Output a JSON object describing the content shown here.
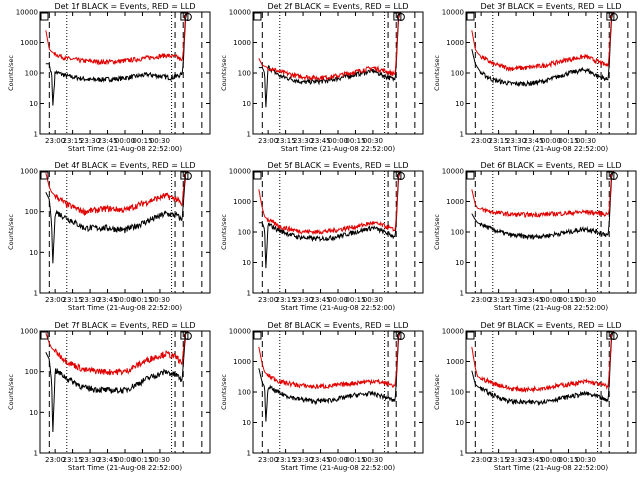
{
  "figure": {
    "ylabel": "Counts/sec",
    "xlabel": "Start Time (21-Aug-08 22:52:00)",
    "colors": {
      "events": "#000000",
      "lld": "#e00000",
      "markers": "#000000"
    }
  },
  "chart_data": [
    {
      "type": "line",
      "title": "Det 1f BLACK = Events, RED = LLD",
      "ylim": [
        1,
        10000
      ],
      "yscale": "log",
      "x_ticks": [
        "23:00",
        "23:15",
        "23:30",
        "23:45",
        "00:00",
        "00:15",
        "00:30"
      ],
      "y_ticks": [
        "1",
        "10",
        "100",
        "1000",
        "10000"
      ],
      "series": [
        {
          "key": "events",
          "x_min": [
            -8,
            -5,
            -4,
            -3,
            -2,
            0,
            10,
            30,
            55,
            80,
            100,
            109,
            110,
            112,
            113
          ],
          "y": [
            200,
            200,
            110,
            110,
            8,
            110,
            80,
            60,
            65,
            90,
            70,
            90,
            200,
            6000,
            9000
          ]
        },
        {
          "key": "lld",
          "x_min": [
            -8,
            -5,
            -3,
            0,
            10,
            25,
            40,
            55,
            75,
            95,
            105,
            109,
            110,
            112,
            113
          ],
          "y": [
            2500,
            600,
            500,
            420,
            300,
            250,
            230,
            240,
            300,
            380,
            330,
            250,
            450,
            8000,
            10000
          ]
        }
      ]
    },
    {
      "type": "line",
      "title": "Det 2f BLACK = Events, RED = LLD",
      "ylim": [
        1,
        10000
      ],
      "yscale": "log",
      "x_ticks": [
        "23:00",
        "23:15",
        "23:30",
        "23:45",
        "00:00",
        "00:15",
        "00:30"
      ],
      "y_ticks": [
        "1",
        "10",
        "100",
        "1000",
        "10000"
      ],
      "series": [
        {
          "key": "events",
          "x_min": [
            -8,
            -5,
            -3,
            -2,
            0,
            10,
            30,
            50,
            75,
            90,
            100,
            109,
            110,
            112,
            113
          ],
          "y": [
            150,
            150,
            100,
            7,
            160,
            80,
            50,
            55,
            90,
            120,
            80,
            60,
            200,
            6000,
            9000
          ]
        },
        {
          "key": "lld",
          "x_min": [
            -8,
            -5,
            -2,
            0,
            10,
            25,
            40,
            55,
            75,
            90,
            100,
            109,
            110,
            112,
            113
          ],
          "y": [
            300,
            180,
            160,
            150,
            110,
            80,
            70,
            75,
            110,
            150,
            120,
            90,
            300,
            8000,
            10000
          ]
        }
      ]
    },
    {
      "type": "line",
      "title": "Det 3f BLACK = Events, RED = LLD",
      "ylim": [
        1,
        10000
      ],
      "yscale": "log",
      "x_ticks": [
        "23:00",
        "23:15",
        "23:30",
        "23:45",
        "00:00",
        "00:15",
        "00:30"
      ],
      "y_ticks": [
        "1",
        "10",
        "100",
        "1000",
        "10000"
      ],
      "series": [
        {
          "key": "events",
          "x_min": [
            -8,
            -5,
            -3,
            0,
            10,
            25,
            40,
            55,
            75,
            90,
            100,
            109,
            110,
            112,
            113
          ],
          "y": [
            600,
            200,
            150,
            100,
            60,
            45,
            45,
            55,
            100,
            130,
            80,
            60,
            200,
            6000,
            9000
          ]
        },
        {
          "key": "lld",
          "x_min": [
            -8,
            -5,
            -3,
            0,
            10,
            25,
            40,
            55,
            75,
            90,
            100,
            109,
            110,
            112,
            113
          ],
          "y": [
            2500,
            600,
            450,
            350,
            200,
            140,
            150,
            180,
            280,
            350,
            240,
            170,
            400,
            8000,
            10000
          ]
        }
      ]
    },
    {
      "type": "line",
      "title": "Det 4f BLACK = Events, RED = LLD",
      "ylim": [
        1,
        1000
      ],
      "yscale": "log",
      "x_ticks": [
        "23:00",
        "23:15",
        "23:30",
        "23:45",
        "00:00",
        "00:15",
        "00:30"
      ],
      "y_ticks": [
        "1",
        "10",
        "100",
        "1000"
      ],
      "series": [
        {
          "key": "events",
          "x_min": [
            -8,
            -5,
            -4,
            -3,
            -2,
            0,
            10,
            25,
            45,
            60,
            80,
            95,
            105,
            109,
            110,
            112,
            113
          ],
          "y": [
            300,
            200,
            100,
            50,
            5,
            100,
            70,
            40,
            40,
            35,
            60,
            90,
            80,
            60,
            150,
            800,
            1000
          ]
        },
        {
          "key": "lld",
          "x_min": [
            -8,
            -5,
            -3,
            0,
            10,
            25,
            45,
            60,
            80,
            95,
            105,
            109,
            110,
            112,
            113
          ],
          "y": [
            900,
            400,
            300,
            250,
            150,
            100,
            120,
            110,
            180,
            250,
            200,
            140,
            300,
            900,
            1000
          ]
        }
      ]
    },
    {
      "type": "line",
      "title": "Det 5f BLACK = Events, RED = LLD",
      "ylim": [
        1,
        10000
      ],
      "yscale": "log",
      "x_ticks": [
        "23:00",
        "23:15",
        "23:30",
        "23:45",
        "00:00",
        "00:15",
        "00:30"
      ],
      "y_ticks": [
        "1",
        "10",
        "100",
        "1000",
        "10000"
      ],
      "series": [
        {
          "key": "events",
          "x_min": [
            -8,
            -5,
            -3,
            -2,
            0,
            10,
            25,
            40,
            55,
            75,
            90,
            100,
            109,
            110,
            112,
            113
          ],
          "y": [
            200,
            200,
            120,
            6,
            180,
            110,
            70,
            60,
            65,
            100,
            140,
            100,
            70,
            200,
            6000,
            9000
          ]
        },
        {
          "key": "lld",
          "x_min": [
            -8,
            -5,
            -3,
            0,
            10,
            25,
            40,
            55,
            75,
            90,
            100,
            109,
            110,
            112,
            113
          ],
          "y": [
            2500,
            600,
            320,
            250,
            150,
            110,
            100,
            110,
            150,
            200,
            160,
            110,
            300,
            8000,
            10000
          ]
        }
      ]
    },
    {
      "type": "line",
      "title": "Det 6f BLACK = Events, RED = LLD",
      "ylim": [
        1,
        10000
      ],
      "yscale": "log",
      "x_ticks": [
        "23:00",
        "23:15",
        "23:30",
        "23:45",
        "00:00",
        "00:15",
        "00:30"
      ],
      "y_ticks": [
        "1",
        "10",
        "100",
        "1000",
        "10000"
      ],
      "series": [
        {
          "key": "events",
          "x_min": [
            -8,
            -5,
            -3,
            0,
            10,
            25,
            40,
            55,
            75,
            90,
            100,
            109,
            110,
            112,
            113
          ],
          "y": [
            400,
            250,
            200,
            180,
            120,
            80,
            70,
            75,
            100,
            130,
            100,
            80,
            200,
            6000,
            9000
          ]
        },
        {
          "key": "lld",
          "x_min": [
            -8,
            -5,
            -3,
            0,
            10,
            25,
            40,
            55,
            75,
            90,
            100,
            109,
            110,
            112,
            113
          ],
          "y": [
            2500,
            800,
            600,
            550,
            450,
            380,
            370,
            380,
            420,
            460,
            420,
            380,
            500,
            8000,
            10000
          ]
        }
      ]
    },
    {
      "type": "line",
      "title": "Det 7f BLACK = Events, RED = LLD",
      "ylim": [
        1,
        1000
      ],
      "yscale": "log",
      "x_ticks": [
        "23:00",
        "23:15",
        "23:30",
        "23:45",
        "00:00",
        "00:15",
        "00:30"
      ],
      "y_ticks": [
        "1",
        "10",
        "100",
        "1000"
      ],
      "series": [
        {
          "key": "events",
          "x_min": [
            -8,
            -5,
            -4,
            -3,
            -2,
            0,
            10,
            25,
            45,
            60,
            80,
            95,
            105,
            109,
            110,
            112,
            113
          ],
          "y": [
            300,
            200,
            100,
            60,
            3,
            110,
            70,
            40,
            35,
            35,
            70,
            100,
            80,
            60,
            150,
            800,
            1000
          ]
        },
        {
          "key": "lld",
          "x_min": [
            -8,
            -5,
            -3,
            0,
            10,
            25,
            45,
            60,
            80,
            95,
            105,
            109,
            110,
            112,
            113
          ],
          "y": [
            900,
            500,
            380,
            320,
            180,
            110,
            100,
            100,
            200,
            280,
            220,
            150,
            300,
            900,
            1000
          ]
        }
      ]
    },
    {
      "type": "line",
      "title": "Det 8f BLACK = Events, RED = LLD",
      "ylim": [
        1,
        10000
      ],
      "yscale": "log",
      "x_ticks": [
        "23:00",
        "23:15",
        "23:30",
        "23:45",
        "00:00",
        "00:15",
        "00:30"
      ],
      "y_ticks": [
        "1",
        "10",
        "100",
        "1000",
        "10000"
      ],
      "series": [
        {
          "key": "events",
          "x_min": [
            -8,
            -5,
            -3,
            -2,
            0,
            10,
            25,
            40,
            55,
            75,
            90,
            100,
            109,
            110,
            112,
            113
          ],
          "y": [
            600,
            200,
            150,
            10,
            150,
            90,
            60,
            50,
            55,
            80,
            90,
            70,
            50,
            200,
            6000,
            9000
          ]
        },
        {
          "key": "lld",
          "x_min": [
            -8,
            -5,
            -3,
            0,
            10,
            25,
            40,
            55,
            75,
            90,
            100,
            109,
            110,
            112,
            113
          ],
          "y": [
            3000,
            800,
            450,
            350,
            220,
            170,
            150,
            160,
            200,
            230,
            200,
            160,
            400,
            8000,
            10000
          ]
        }
      ]
    },
    {
      "type": "line",
      "title": "Det 9f BLACK = Events, RED = LLD",
      "ylim": [
        1,
        10000
      ],
      "yscale": "log",
      "x_ticks": [
        "23:00",
        "23:15",
        "23:30",
        "23:45",
        "00:00",
        "00:15",
        "00:30"
      ],
      "y_ticks": [
        "1",
        "10",
        "100",
        "1000",
        "10000"
      ],
      "series": [
        {
          "key": "events",
          "x_min": [
            -8,
            -5,
            -3,
            0,
            10,
            25,
            40,
            55,
            75,
            90,
            100,
            109,
            110,
            112,
            113
          ],
          "y": [
            500,
            180,
            150,
            130,
            80,
            50,
            45,
            50,
            70,
            90,
            70,
            50,
            200,
            6000,
            9000
          ]
        },
        {
          "key": "lld",
          "x_min": [
            -8,
            -5,
            -3,
            0,
            10,
            25,
            40,
            55,
            75,
            90,
            100,
            109,
            110,
            112,
            113
          ],
          "y": [
            3000,
            600,
            320,
            280,
            200,
            130,
            120,
            140,
            180,
            220,
            190,
            150,
            400,
            8000,
            10000
          ]
        }
      ]
    }
  ]
}
